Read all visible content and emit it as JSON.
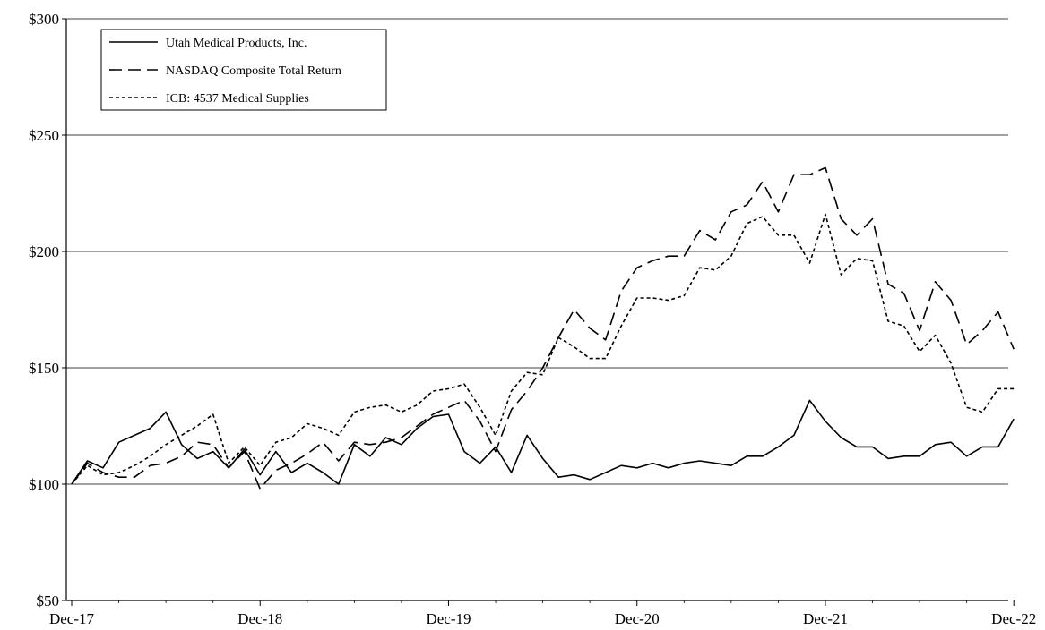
{
  "chart_data": {
    "type": "line",
    "title": "",
    "xlabel": "",
    "ylabel": "",
    "ylim": [
      50,
      300
    ],
    "y_ticks": [
      50,
      100,
      150,
      200,
      250,
      300
    ],
    "y_tick_labels": [
      "$50",
      "$100",
      "$150",
      "$200",
      "$250",
      "$300"
    ],
    "x_tick_labels": [
      "Dec-17",
      "Dec-18",
      "Dec-19",
      "Dec-20",
      "Dec-21",
      "Dec-22"
    ],
    "grid": "horizontal",
    "legend_position": "top-left",
    "x": [
      "Dec-17",
      "Jan-18",
      "Feb-18",
      "Mar-18",
      "Apr-18",
      "May-18",
      "Jun-18",
      "Jul-18",
      "Aug-18",
      "Sep-18",
      "Oct-18",
      "Nov-18",
      "Dec-18",
      "Jan-19",
      "Feb-19",
      "Mar-19",
      "Apr-19",
      "May-19",
      "Jun-19",
      "Jul-19",
      "Aug-19",
      "Sep-19",
      "Oct-19",
      "Nov-19",
      "Dec-19",
      "Jan-20",
      "Feb-20",
      "Mar-20",
      "Apr-20",
      "May-20",
      "Jun-20",
      "Jul-20",
      "Aug-20",
      "Sep-20",
      "Oct-20",
      "Nov-20",
      "Dec-20",
      "Jan-21",
      "Feb-21",
      "Mar-21",
      "Apr-21",
      "May-21",
      "Jun-21",
      "Jul-21",
      "Aug-21",
      "Sep-21",
      "Oct-21",
      "Nov-21",
      "Dec-21",
      "Jan-22",
      "Feb-22",
      "Mar-22",
      "Apr-22",
      "May-22",
      "Jun-22",
      "Jul-22",
      "Aug-22",
      "Sep-22",
      "Oct-22",
      "Nov-22",
      "Dec-22"
    ],
    "series": [
      {
        "name": "Utah Medical Products, Inc.",
        "style": "solid",
        "values": [
          100,
          110,
          107,
          118,
          121,
          124,
          131,
          117,
          111,
          114,
          107,
          115,
          104,
          114,
          105,
          109,
          105,
          100,
          117,
          112,
          120,
          117,
          124,
          129,
          130,
          114,
          109,
          116,
          105,
          121,
          111,
          103,
          104,
          102,
          105,
          108,
          107,
          109,
          107,
          109,
          110,
          109,
          108,
          112,
          112,
          116,
          121,
          136,
          127,
          120,
          116,
          116,
          111,
          112,
          112,
          117,
          118,
          112,
          116,
          116,
          128
        ]
      },
      {
        "name": "NASDAQ Composite Total Return",
        "style": "dashed",
        "values": [
          100,
          109,
          105,
          103,
          103,
          108,
          109,
          112,
          118,
          117,
          107,
          114,
          98,
          106,
          109,
          113,
          118,
          110,
          118,
          117,
          118,
          120,
          125,
          130,
          133,
          136,
          127,
          114,
          132,
          140,
          150,
          163,
          175,
          167,
          162,
          183,
          193,
          196,
          198,
          198,
          209,
          205,
          217,
          220,
          230,
          217,
          233,
          233,
          236,
          214,
          207,
          214,
          186,
          182,
          166,
          187,
          179,
          160,
          166,
          174,
          158
        ]
      },
      {
        "name": "ICB: 4537 Medical Supplies",
        "style": "dotted",
        "values": [
          100,
          108,
          104,
          105,
          108,
          112,
          117,
          121,
          125,
          130,
          109,
          116,
          108,
          118,
          120,
          126,
          124,
          121,
          131,
          133,
          134,
          131,
          134,
          140,
          141,
          143,
          133,
          121,
          140,
          148,
          147,
          163,
          159,
          154,
          154,
          168,
          180,
          180,
          179,
          181,
          193,
          192,
          198,
          212,
          215,
          207,
          207,
          195,
          216,
          190,
          197,
          196,
          170,
          168,
          157,
          164,
          152,
          133,
          131,
          141,
          141
        ]
      }
    ]
  }
}
